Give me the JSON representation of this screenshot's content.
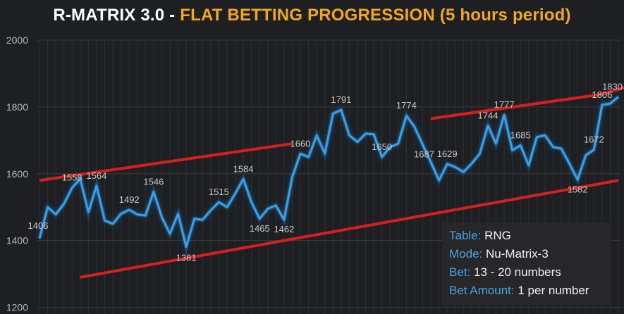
{
  "title": {
    "part1": "R-MATRIX 3.0 - ",
    "part2": "FLAT BETTING PROGRESSION (5 hours period)",
    "part1_color": "#ffffff",
    "part2_color": "#f2a81d"
  },
  "info": {
    "table_label": "Table:",
    "table_value": "RNG",
    "mode_label": "Mode:",
    "mode_value": "Nu-Matrix-3",
    "bet_label": "Bet:",
    "bet_value": "13 - 20 numbers",
    "amount_label": "Bet Amount:",
    "amount_value": "1  per number"
  },
  "chart_data": {
    "type": "line",
    "title": "R-MATRIX 3.0 - FLAT BETTING PROGRESSION (5 hours period)",
    "ylim": [
      1180,
      2000
    ],
    "yticks": [
      1200,
      1400,
      1600,
      1800,
      2000
    ],
    "grid": true,
    "line_color": "#3aa0e8",
    "trend_color": "#d42020",
    "series": [
      {
        "values": [
          1406,
          1500,
          1478,
          1510,
          1558,
          1585,
          1485,
          1564,
          1460,
          1450,
          1480,
          1492,
          1478,
          1475,
          1546,
          1470,
          1420,
          1480,
          1381,
          1465,
          1462,
          1490,
          1515,
          1500,
          1540,
          1584,
          1515,
          1465,
          1495,
          1505,
          1462,
          1590,
          1660,
          1650,
          1715,
          1660,
          1780,
          1791,
          1715,
          1695,
          1720,
          1718,
          1650,
          1680,
          1690,
          1774,
          1740,
          1687,
          1635,
          1580,
          1629,
          1620,
          1605,
          1630,
          1660,
          1744,
          1690,
          1777,
          1670,
          1685,
          1625,
          1710,
          1715,
          1680,
          1675,
          1630,
          1582,
          1655,
          1672,
          1806,
          1810,
          1830
        ]
      }
    ],
    "point_labels": [
      {
        "index": 0,
        "value": "1406"
      },
      {
        "index": 4,
        "value": "1558"
      },
      {
        "index": 7,
        "value": "1564"
      },
      {
        "index": 11,
        "value": "1492"
      },
      {
        "index": 14,
        "value": "1546"
      },
      {
        "index": 18,
        "value": "1381"
      },
      {
        "index": 22,
        "value": "1515"
      },
      {
        "index": 25,
        "value": "1584"
      },
      {
        "index": 27,
        "value": "1465"
      },
      {
        "index": 30,
        "value": "1462"
      },
      {
        "index": 32,
        "value": "1660"
      },
      {
        "index": 37,
        "value": "1791"
      },
      {
        "index": 42,
        "value": "1650"
      },
      {
        "index": 45,
        "value": "1774"
      },
      {
        "index": 47,
        "value": "1687"
      },
      {
        "index": 50,
        "value": "1629"
      },
      {
        "index": 55,
        "value": "1744"
      },
      {
        "index": 57,
        "value": "1777"
      },
      {
        "index": 59,
        "value": "1685"
      },
      {
        "index": 66,
        "value": "1582"
      },
      {
        "index": 68,
        "value": "1672"
      },
      {
        "index": 69,
        "value": "1806"
      },
      {
        "index": 71,
        "value": "1830"
      }
    ],
    "trend_lines": [
      {
        "start_index": 0,
        "start_value": 1580,
        "end_index": 31,
        "end_value": 1690
      },
      {
        "start_index": 5,
        "start_value": 1290,
        "end_index": 71,
        "end_value": 1580
      },
      {
        "start_index": 48,
        "start_value": 1765,
        "end_index": 69,
        "end_value": 1838
      },
      {
        "start_index": 69,
        "start_value": 1838,
        "end_index": 72,
        "end_value": 1860
      }
    ]
  }
}
